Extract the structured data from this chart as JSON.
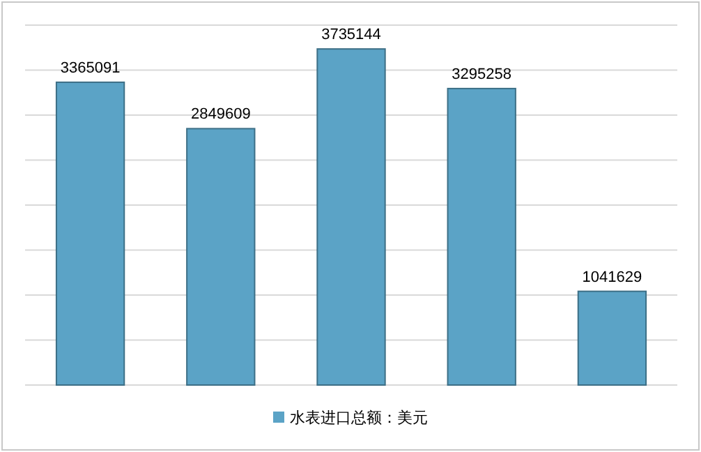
{
  "chart_data": {
    "type": "bar",
    "categories": [
      null,
      null,
      null,
      null,
      null
    ],
    "series": [
      {
        "name": "水表进口总额：美元",
        "color": "#5ba3c6",
        "values": [
          3365091,
          2849609,
          3735144,
          3295258,
          1041629
        ]
      }
    ],
    "ylim": [
      0,
      4000000
    ],
    "yticks": [
      {
        "value": 0,
        "label": null
      },
      {
        "value": 500000,
        "label": null
      },
      {
        "value": 1000000,
        "label": null
      },
      {
        "value": 1500000,
        "label": null
      },
      {
        "value": 2000000,
        "label": null
      },
      {
        "value": 2500000,
        "label": null
      },
      {
        "value": 3000000,
        "label": null
      },
      {
        "value": 3500000,
        "label": null
      },
      {
        "value": 4000000,
        "label": null
      }
    ],
    "grid": "y",
    "data_labels": true,
    "legend": "bottom"
  }
}
